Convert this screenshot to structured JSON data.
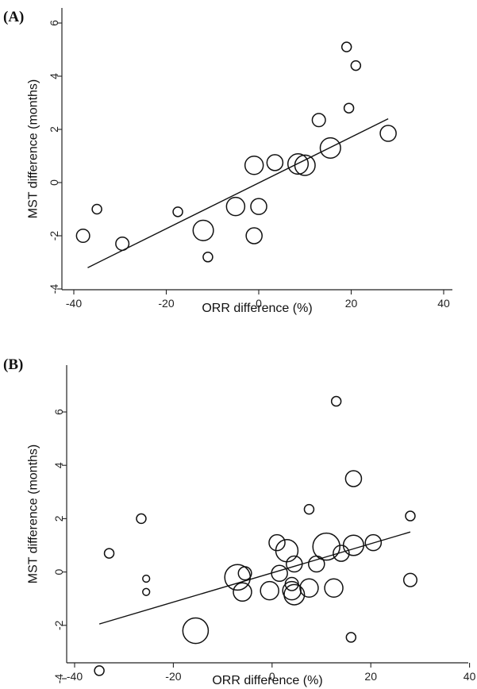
{
  "chart_data": [
    {
      "type": "scatter",
      "panel_label": "(A)",
      "xlabel": "ORR difference (%)",
      "ylabel": "MST difference (months)",
      "xlim": [
        -40,
        40
      ],
      "ylim": [
        -4,
        6
      ],
      "xticks": [
        -40,
        -20,
        0,
        20,
        40
      ],
      "yticks": [
        -4,
        -2,
        0,
        2,
        4,
        6
      ],
      "points": [
        {
          "x": -38,
          "y": -2.0,
          "w": 2
        },
        {
          "x": -35,
          "y": -1.0,
          "w": 1
        },
        {
          "x": -29.5,
          "y": -2.3,
          "w": 2
        },
        {
          "x": -17.5,
          "y": -1.1,
          "w": 1
        },
        {
          "x": -12,
          "y": -1.8,
          "w": 5
        },
        {
          "x": -11,
          "y": -2.8,
          "w": 1
        },
        {
          "x": -5,
          "y": -0.9,
          "w": 4
        },
        {
          "x": -1,
          "y": -2.0,
          "w": 3
        },
        {
          "x": -1,
          "y": 0.65,
          "w": 4
        },
        {
          "x": 0,
          "y": -0.9,
          "w": 3
        },
        {
          "x": 3.5,
          "y": 0.75,
          "w": 3
        },
        {
          "x": 8.5,
          "y": 0.7,
          "w": 5
        },
        {
          "x": 10,
          "y": 0.65,
          "w": 5
        },
        {
          "x": 13,
          "y": 2.35,
          "w": 2
        },
        {
          "x": 15.5,
          "y": 1.3,
          "w": 5
        },
        {
          "x": 19,
          "y": 5.1,
          "w": 1
        },
        {
          "x": 19.5,
          "y": 2.8,
          "w": 1
        },
        {
          "x": 21,
          "y": 4.4,
          "w": 1
        },
        {
          "x": 28,
          "y": 1.85,
          "w": 3
        }
      ],
      "fit_line": {
        "x": [
          -37,
          28
        ],
        "y": [
          -3.2,
          2.4
        ]
      }
    },
    {
      "type": "scatter",
      "panel_label": "(B)",
      "xlabel": "ORR difference (%)",
      "ylabel": "MST difference (months)",
      "xlim": [
        -40,
        40
      ],
      "ylim": [
        -4,
        6
      ],
      "xticks": [
        -40,
        -20,
        0,
        20,
        40
      ],
      "yticks": [
        -4,
        -2,
        0,
        2,
        4,
        6
      ],
      "points": [
        {
          "x": -35,
          "y": -3.7,
          "w": 1
        },
        {
          "x": -33,
          "y": 0.7,
          "w": 1
        },
        {
          "x": -26.5,
          "y": 2.0,
          "w": 1
        },
        {
          "x": -25.5,
          "y": -0.25,
          "w": 0.5
        },
        {
          "x": -25.5,
          "y": -0.75,
          "w": 0.5
        },
        {
          "x": -15.5,
          "y": -2.2,
          "w": 8
        },
        {
          "x": -7,
          "y": -0.2,
          "w": 8
        },
        {
          "x": -6,
          "y": -0.75,
          "w": 4
        },
        {
          "x": -5.5,
          "y": -0.05,
          "w": 2
        },
        {
          "x": -0.5,
          "y": -0.7,
          "w": 4
        },
        {
          "x": 1,
          "y": 1.1,
          "w": 3
        },
        {
          "x": 1.5,
          "y": -0.05,
          "w": 3
        },
        {
          "x": 3,
          "y": 0.8,
          "w": 6
        },
        {
          "x": 4,
          "y": -0.45,
          "w": 2
        },
        {
          "x": 4,
          "y": -0.7,
          "w": 4
        },
        {
          "x": 4.5,
          "y": -0.85,
          "w": 5
        },
        {
          "x": 4.5,
          "y": 0.3,
          "w": 3
        },
        {
          "x": 7.5,
          "y": -0.6,
          "w": 4
        },
        {
          "x": 7.5,
          "y": 2.35,
          "w": 1
        },
        {
          "x": 9,
          "y": 0.3,
          "w": 3
        },
        {
          "x": 11,
          "y": 0.95,
          "w": 9
        },
        {
          "x": 12.5,
          "y": -0.6,
          "w": 4
        },
        {
          "x": 13,
          "y": 6.4,
          "w": 1
        },
        {
          "x": 14,
          "y": 0.7,
          "w": 3
        },
        {
          "x": 16,
          "y": -2.45,
          "w": 1
        },
        {
          "x": 16.5,
          "y": 1.0,
          "w": 5
        },
        {
          "x": 16.5,
          "y": 3.5,
          "w": 3
        },
        {
          "x": 20.5,
          "y": 1.1,
          "w": 3
        },
        {
          "x": 28,
          "y": 2.1,
          "w": 1
        },
        {
          "x": 28,
          "y": -0.3,
          "w": 2
        }
      ],
      "fit_line": {
        "x": [
          -35,
          28
        ],
        "y": [
          -1.95,
          1.5
        ]
      }
    }
  ]
}
